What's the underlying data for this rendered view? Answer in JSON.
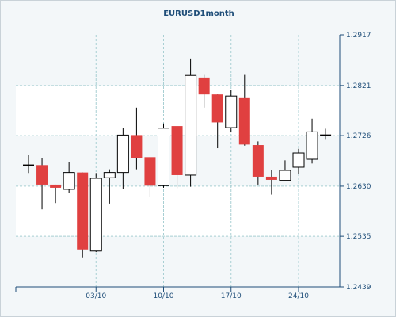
{
  "chart_data": {
    "type": "candlestick",
    "title": "EURUSD1month",
    "xlabel": "",
    "ylabel": "",
    "ylim": [
      1.2439,
      1.2917
    ],
    "y_ticks": [
      "1.2917",
      "1.2821",
      "1.2726",
      "1.2630",
      "1.2535",
      "1.2439"
    ],
    "x_ticks": [
      {
        "label": "03/10",
        "day": 6
      },
      {
        "label": "10/10",
        "day": 11
      },
      {
        "label": "17/10",
        "day": 16
      },
      {
        "label": "24/10",
        "day": 21
      }
    ],
    "grid": true,
    "legend": "none",
    "colors": {
      "up": "#ffffff",
      "down": "#e04040",
      "outline": "#000000",
      "grid": "#a8cfd3",
      "axis_text": "#1f4e79"
    },
    "candles": [
      {
        "day": 1,
        "open": 1.267,
        "high": 1.269,
        "low": 1.2655,
        "close": 1.267
      },
      {
        "day": 2,
        "open": 1.267,
        "high": 1.2683,
        "low": 1.2586,
        "close": 1.2633
      },
      {
        "day": 3,
        "open": 1.2633,
        "high": 1.2633,
        "low": 1.2598,
        "close": 1.2627
      },
      {
        "day": 4,
        "open": 1.2624,
        "high": 1.2675,
        "low": 1.2617,
        "close": 1.2656
      },
      {
        "day": 5,
        "open": 1.2656,
        "high": 1.2656,
        "low": 1.2495,
        "close": 1.251
      },
      {
        "day": 6,
        "open": 1.2507,
        "high": 1.2655,
        "low": 1.2505,
        "close": 1.2645
      },
      {
        "day": 7,
        "open": 1.2646,
        "high": 1.2662,
        "low": 1.2597,
        "close": 1.2656
      },
      {
        "day": 8,
        "open": 1.2656,
        "high": 1.274,
        "low": 1.2625,
        "close": 1.2727
      },
      {
        "day": 9,
        "open": 1.2727,
        "high": 1.2779,
        "low": 1.2662,
        "close": 1.2683
      },
      {
        "day": 10,
        "open": 1.2685,
        "high": 1.2685,
        "low": 1.261,
        "close": 1.2631
      },
      {
        "day": 11,
        "open": 1.2631,
        "high": 1.2749,
        "low": 1.2627,
        "close": 1.274
      },
      {
        "day": 12,
        "open": 1.2744,
        "high": 1.2744,
        "low": 1.2626,
        "close": 1.2651
      },
      {
        "day": 13,
        "open": 1.2651,
        "high": 1.2872,
        "low": 1.2629,
        "close": 1.284
      },
      {
        "day": 14,
        "open": 1.2836,
        "high": 1.2841,
        "low": 1.2779,
        "close": 1.2804
      },
      {
        "day": 15,
        "open": 1.2804,
        "high": 1.2804,
        "low": 1.2702,
        "close": 1.2751
      },
      {
        "day": 16,
        "open": 1.2741,
        "high": 1.2813,
        "low": 1.2732,
        "close": 1.2801
      },
      {
        "day": 17,
        "open": 1.2797,
        "high": 1.2841,
        "low": 1.2707,
        "close": 1.2709
      },
      {
        "day": 18,
        "open": 1.2708,
        "high": 1.2715,
        "low": 1.2633,
        "close": 1.2648
      },
      {
        "day": 19,
        "open": 1.2648,
        "high": 1.2661,
        "low": 1.2614,
        "close": 1.2642
      },
      {
        "day": 20,
        "open": 1.2641,
        "high": 1.2679,
        "low": 1.264,
        "close": 1.266
      },
      {
        "day": 21,
        "open": 1.2666,
        "high": 1.2701,
        "low": 1.2654,
        "close": 1.2693
      },
      {
        "day": 22,
        "open": 1.2681,
        "high": 1.2758,
        "low": 1.2673,
        "close": 1.2733
      },
      {
        "day": 23,
        "open": 1.2726,
        "high": 1.2739,
        "low": 1.2718,
        "close": 1.2727
      }
    ]
  }
}
